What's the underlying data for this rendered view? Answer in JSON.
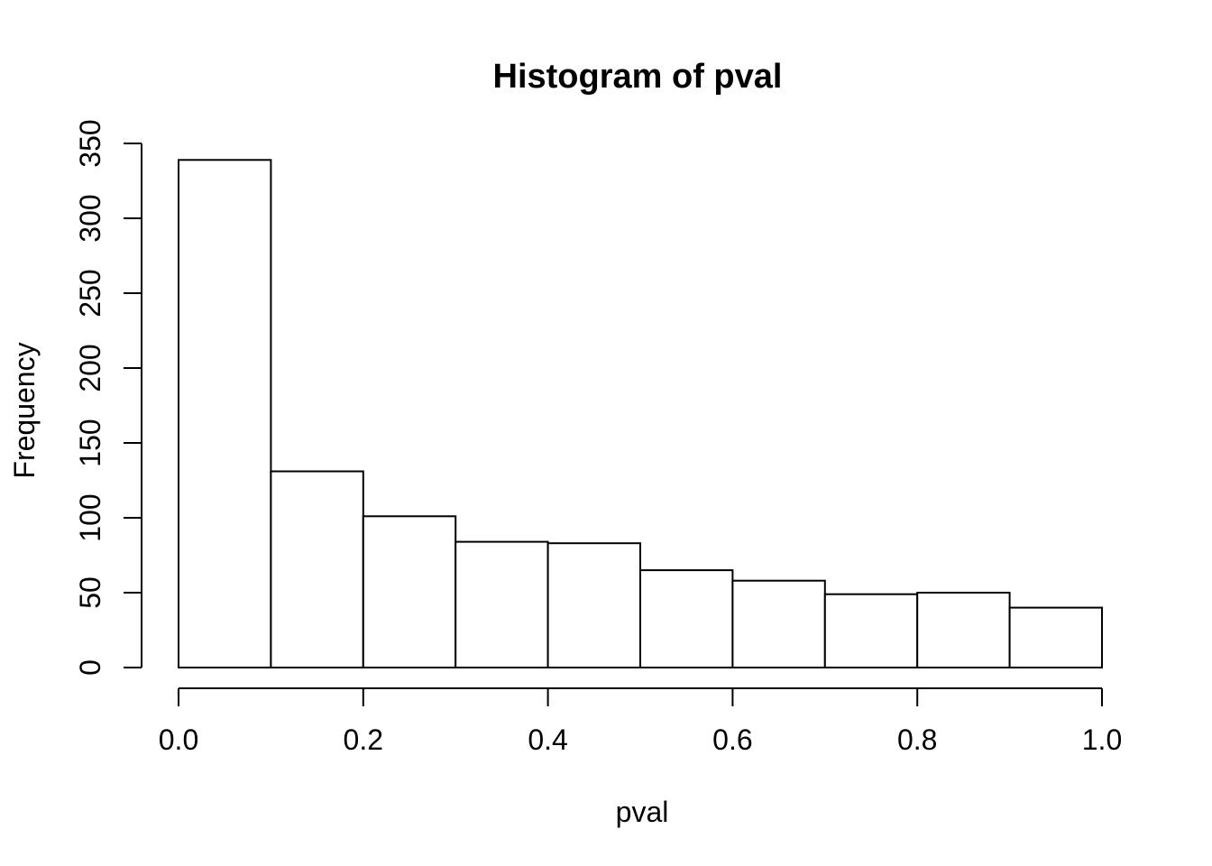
{
  "figure": {
    "background": "#ffffff",
    "foreground": "#000000"
  },
  "chart_data": {
    "type": "bar",
    "subtype": "histogram",
    "title": "Histogram of pval",
    "xlabel": "pval",
    "ylabel": "Frequency",
    "bin_edges": [
      0.0,
      0.1,
      0.2,
      0.3,
      0.4,
      0.5,
      0.6,
      0.7,
      0.8,
      0.9,
      1.0
    ],
    "frequencies": [
      339,
      131,
      101,
      84,
      83,
      65,
      58,
      49,
      50,
      40
    ],
    "xlim": [
      0.0,
      1.0
    ],
    "ylim": [
      0,
      350
    ],
    "x_ticks": [
      0.0,
      0.2,
      0.4,
      0.6,
      0.8,
      1.0
    ],
    "x_tick_labels": [
      "0.0",
      "0.2",
      "0.4",
      "0.6",
      "0.8",
      "1.0"
    ],
    "y_ticks": [
      0,
      50,
      100,
      150,
      200,
      250,
      300,
      350
    ],
    "y_tick_labels": [
      "0",
      "50",
      "100",
      "150",
      "200",
      "250",
      "300",
      "350"
    ],
    "bar_fill": "#ffffff",
    "bar_stroke": "#000000",
    "axis_color": "#000000",
    "grid": false,
    "legend": null
  }
}
